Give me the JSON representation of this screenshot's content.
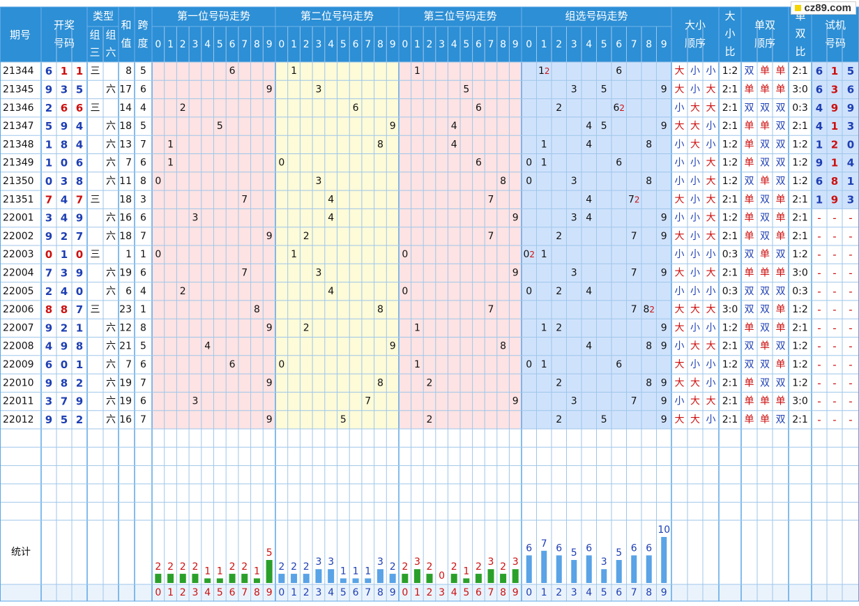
{
  "watermark": "cz89.com",
  "headers": {
    "period": "期号",
    "draw": "开奖号码",
    "type": "类型",
    "type_sub": [
      "组三",
      "组六"
    ],
    "sum": "和值",
    "span": "跨度",
    "trend1": "第一位号码走势",
    "trend2": "第二位号码走势",
    "trend3": "第三位号码走势",
    "trend_g": "组选号码走势",
    "bs_order": "大小顺序",
    "bs_ratio": "大小比",
    "oe_order": "单双顺序",
    "oe_ratio": "单双比",
    "trial": "试机号码",
    "digits": [
      "0",
      "1",
      "2",
      "3",
      "4",
      "5",
      "6",
      "7",
      "8",
      "9"
    ],
    "stats": "统计"
  },
  "colors": {
    "header_bg": "#2d8fd5",
    "header_text": "#ffffff",
    "pos1_bg": "#fde3e3",
    "pos2_bg": "#fdfbd8",
    "pos3_bg": "#fde3e3",
    "group_bg": "#cfe2fc",
    "grid_line": "#9ec6ea",
    "red": "#cc1010",
    "blue": "#1d3fb3",
    "green_bar": "#2aa02a",
    "blue_bar": "#59a3e6"
  },
  "rows": [
    {
      "period": "21344",
      "draw": [
        "6",
        "1",
        "1"
      ],
      "type": "三",
      "sum": "8",
      "span": "5",
      "g_mult": {
        "1": "12",
        "6": "6"
      },
      "bs": [
        "大",
        "小",
        "小"
      ],
      "bs_ratio": "1:2",
      "oe": [
        "双",
        "单",
        "单"
      ],
      "oe_ratio": "2:1",
      "trial": [
        "6",
        "1",
        "5"
      ]
    },
    {
      "period": "21345",
      "draw": [
        "9",
        "3",
        "5"
      ],
      "type": "六",
      "sum": "17",
      "span": "6",
      "g_mult": {},
      "bs": [
        "大",
        "小",
        "大"
      ],
      "bs_ratio": "2:1",
      "oe": [
        "单",
        "单",
        "单"
      ],
      "oe_ratio": "3:0",
      "trial": [
        "6",
        "3",
        "6"
      ]
    },
    {
      "period": "21346",
      "draw": [
        "2",
        "6",
        "6"
      ],
      "type": "三",
      "sum": "14",
      "span": "4",
      "g_mult": {
        "2": "2",
        "6": "62"
      },
      "bs": [
        "小",
        "大",
        "大"
      ],
      "bs_ratio": "2:1",
      "oe": [
        "双",
        "双",
        "双"
      ],
      "oe_ratio": "0:3",
      "trial": [
        "4",
        "9",
        "9"
      ]
    },
    {
      "period": "21347",
      "draw": [
        "5",
        "9",
        "4"
      ],
      "type": "六",
      "sum": "18",
      "span": "5",
      "g_mult": {},
      "bs": [
        "大",
        "大",
        "小"
      ],
      "bs_ratio": "2:1",
      "oe": [
        "单",
        "单",
        "双"
      ],
      "oe_ratio": "2:1",
      "trial": [
        "4",
        "1",
        "3"
      ]
    },
    {
      "period": "21348",
      "draw": [
        "1",
        "8",
        "4"
      ],
      "type": "六",
      "sum": "13",
      "span": "7",
      "g_mult": {},
      "bs": [
        "小",
        "大",
        "小"
      ],
      "bs_ratio": "1:2",
      "oe": [
        "单",
        "双",
        "双"
      ],
      "oe_ratio": "1:2",
      "trial": [
        "1",
        "2",
        "0"
      ]
    },
    {
      "period": "21349",
      "draw": [
        "1",
        "0",
        "6"
      ],
      "type": "六",
      "sum": "7",
      "span": "6",
      "g_mult": {},
      "bs": [
        "小",
        "小",
        "大"
      ],
      "bs_ratio": "1:2",
      "oe": [
        "单",
        "双",
        "双"
      ],
      "oe_ratio": "1:2",
      "trial": [
        "9",
        "1",
        "4"
      ]
    },
    {
      "period": "21350",
      "draw": [
        "0",
        "3",
        "8"
      ],
      "type": "六",
      "sum": "11",
      "span": "8",
      "g_mult": {},
      "bs": [
        "小",
        "小",
        "大"
      ],
      "bs_ratio": "1:2",
      "oe": [
        "双",
        "单",
        "双"
      ],
      "oe_ratio": "1:2",
      "trial": [
        "6",
        "8",
        "1"
      ]
    },
    {
      "period": "21351",
      "draw": [
        "7",
        "4",
        "7"
      ],
      "type": "三",
      "sum": "18",
      "span": "3",
      "g_mult": {
        "4": "4",
        "7": "72"
      },
      "bs": [
        "大",
        "小",
        "大"
      ],
      "bs_ratio": "2:1",
      "oe": [
        "单",
        "双",
        "单"
      ],
      "oe_ratio": "2:1",
      "trial": [
        "1",
        "9",
        "3"
      ]
    },
    {
      "period": "22001",
      "draw": [
        "3",
        "4",
        "9"
      ],
      "type": "六",
      "sum": "16",
      "span": "6",
      "g_mult": {},
      "bs": [
        "小",
        "小",
        "大"
      ],
      "bs_ratio": "1:2",
      "oe": [
        "单",
        "双",
        "单"
      ],
      "oe_ratio": "2:1",
      "trial": [
        "-",
        "-",
        "-"
      ]
    },
    {
      "period": "22002",
      "draw": [
        "9",
        "2",
        "7"
      ],
      "type": "六",
      "sum": "18",
      "span": "7",
      "g_mult": {},
      "bs": [
        "大",
        "小",
        "大"
      ],
      "bs_ratio": "2:1",
      "oe": [
        "单",
        "双",
        "单"
      ],
      "oe_ratio": "2:1",
      "trial": [
        "-",
        "-",
        "-"
      ]
    },
    {
      "period": "22003",
      "draw": [
        "0",
        "1",
        "0"
      ],
      "type": "三",
      "sum": "1",
      "span": "1",
      "g_mult": {
        "0": "02",
        "1": "1"
      },
      "bs": [
        "小",
        "小",
        "小"
      ],
      "bs_ratio": "0:3",
      "oe": [
        "双",
        "单",
        "双"
      ],
      "oe_ratio": "1:2",
      "trial": [
        "-",
        "-",
        "-"
      ]
    },
    {
      "period": "22004",
      "draw": [
        "7",
        "3",
        "9"
      ],
      "type": "六",
      "sum": "19",
      "span": "6",
      "g_mult": {},
      "bs": [
        "大",
        "小",
        "大"
      ],
      "bs_ratio": "2:1",
      "oe": [
        "单",
        "单",
        "单"
      ],
      "oe_ratio": "3:0",
      "trial": [
        "-",
        "-",
        "-"
      ]
    },
    {
      "period": "22005",
      "draw": [
        "2",
        "4",
        "0"
      ],
      "type": "六",
      "sum": "6",
      "span": "4",
      "g_mult": {},
      "bs": [
        "小",
        "小",
        "小"
      ],
      "bs_ratio": "0:3",
      "oe": [
        "双",
        "双",
        "双"
      ],
      "oe_ratio": "0:3",
      "trial": [
        "-",
        "-",
        "-"
      ]
    },
    {
      "period": "22006",
      "draw": [
        "8",
        "8",
        "7"
      ],
      "type": "三",
      "sum": "23",
      "span": "1",
      "g_mult": {
        "7": "7",
        "8": "82"
      },
      "bs": [
        "大",
        "大",
        "大"
      ],
      "bs_ratio": "3:0",
      "oe": [
        "双",
        "双",
        "单"
      ],
      "oe_ratio": "1:2",
      "trial": [
        "-",
        "-",
        "-"
      ]
    },
    {
      "period": "22007",
      "draw": [
        "9",
        "2",
        "1"
      ],
      "type": "六",
      "sum": "12",
      "span": "8",
      "g_mult": {},
      "bs": [
        "大",
        "小",
        "小"
      ],
      "bs_ratio": "1:2",
      "oe": [
        "单",
        "双",
        "单"
      ],
      "oe_ratio": "2:1",
      "trial": [
        "-",
        "-",
        "-"
      ]
    },
    {
      "period": "22008",
      "draw": [
        "4",
        "9",
        "8"
      ],
      "type": "六",
      "sum": "21",
      "span": "5",
      "g_mult": {},
      "bs": [
        "小",
        "大",
        "大"
      ],
      "bs_ratio": "2:1",
      "oe": [
        "双",
        "单",
        "双"
      ],
      "oe_ratio": "1:2",
      "trial": [
        "-",
        "-",
        "-"
      ]
    },
    {
      "period": "22009",
      "draw": [
        "6",
        "0",
        "1"
      ],
      "type": "六",
      "sum": "7",
      "span": "6",
      "g_mult": {},
      "bs": [
        "大",
        "小",
        "小"
      ],
      "bs_ratio": "1:2",
      "oe": [
        "双",
        "双",
        "单"
      ],
      "oe_ratio": "1:2",
      "trial": [
        "-",
        "-",
        "-"
      ]
    },
    {
      "period": "22010",
      "draw": [
        "9",
        "8",
        "2"
      ],
      "type": "六",
      "sum": "19",
      "span": "7",
      "g_mult": {},
      "bs": [
        "大",
        "大",
        "小"
      ],
      "bs_ratio": "2:1",
      "oe": [
        "单",
        "双",
        "双"
      ],
      "oe_ratio": "1:2",
      "trial": [
        "-",
        "-",
        "-"
      ]
    },
    {
      "period": "22011",
      "draw": [
        "3",
        "7",
        "9"
      ],
      "type": "六",
      "sum": "19",
      "span": "6",
      "g_mult": {},
      "bs": [
        "小",
        "大",
        "大"
      ],
      "bs_ratio": "2:1",
      "oe": [
        "单",
        "单",
        "单"
      ],
      "oe_ratio": "3:0",
      "trial": [
        "-",
        "-",
        "-"
      ]
    },
    {
      "period": "22012",
      "draw": [
        "9",
        "5",
        "2"
      ],
      "type": "六",
      "sum": "16",
      "span": "7",
      "g_mult": {},
      "bs": [
        "大",
        "大",
        "小"
      ],
      "bs_ratio": "2:1",
      "oe": [
        "单",
        "单",
        "双"
      ],
      "oe_ratio": "2:1",
      "trial": [
        "-",
        "-",
        "-"
      ]
    }
  ],
  "chart_data": {
    "type": "table",
    "categories": [
      "0",
      "1",
      "2",
      "3",
      "4",
      "5",
      "6",
      "7",
      "8",
      "9"
    ],
    "series": [
      {
        "name": "第一位号码走势",
        "values": [
          2,
          2,
          2,
          2,
          1,
          1,
          2,
          2,
          1,
          5
        ]
      },
      {
        "name": "第二位号码走势",
        "values": [
          2,
          2,
          2,
          3,
          3,
          1,
          1,
          1,
          3,
          2
        ]
      },
      {
        "name": "第三位号码走势",
        "values": [
          2,
          3,
          2,
          0,
          2,
          1,
          2,
          3,
          2,
          3
        ]
      },
      {
        "name": "组选号码走势",
        "values": [
          6,
          7,
          6,
          5,
          6,
          3,
          5,
          6,
          6,
          10
        ]
      }
    ],
    "stat_ylim": [
      0,
      10
    ]
  }
}
